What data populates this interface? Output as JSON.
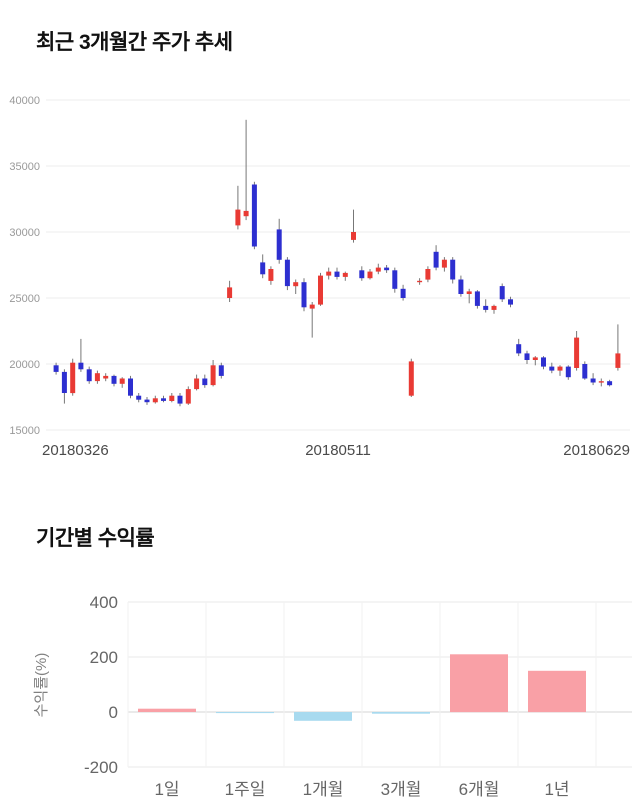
{
  "price_section": {
    "title": "최근 3개월간 주가 추세"
  },
  "returns_section": {
    "title": "기간별 수익률"
  },
  "chart_data": [
    {
      "type": "candlestick",
      "title": "최근 3개월간 주가 추세",
      "ylim": [
        15000,
        40000
      ],
      "yticks": [
        15000,
        20000,
        25000,
        30000,
        35000,
        40000
      ],
      "xtick_labels": [
        "20180326",
        "20180511",
        "20180629"
      ],
      "up_color": "#e93a34",
      "down_color": "#2d2fd0",
      "wick_color": "#777777",
      "grid_color": "#ececec",
      "candles": [
        [
          19900,
          20100,
          19200,
          19400
        ],
        [
          19400,
          19600,
          17000,
          17800
        ],
        [
          17800,
          20400,
          17600,
          20100
        ],
        [
          20100,
          21900,
          19400,
          19600
        ],
        [
          19600,
          19800,
          18500,
          18700
        ],
        [
          18700,
          19500,
          18500,
          19300
        ],
        [
          18900,
          19300,
          18700,
          19100
        ],
        [
          19100,
          19200,
          18300,
          18500
        ],
        [
          18500,
          19000,
          18200,
          18900
        ],
        [
          18900,
          19100,
          17400,
          17600
        ],
        [
          17600,
          17800,
          17100,
          17300
        ],
        [
          17300,
          17500,
          16900,
          17100
        ],
        [
          17100,
          17600,
          17000,
          17400
        ],
        [
          17400,
          17600,
          17100,
          17200
        ],
        [
          17200,
          17800,
          17100,
          17600
        ],
        [
          17600,
          17800,
          16800,
          17000
        ],
        [
          17000,
          18300,
          16900,
          18100
        ],
        [
          18100,
          19200,
          18000,
          18900
        ],
        [
          18900,
          19200,
          18200,
          18400
        ],
        [
          18400,
          20300,
          18300,
          19900
        ],
        [
          19900,
          20100,
          18900,
          19100
        ],
        [
          25000,
          26300,
          24700,
          25800
        ],
        [
          30500,
          33500,
          30200,
          31700
        ],
        [
          31200,
          38500,
          30900,
          31600
        ],
        [
          33600,
          33800,
          28700,
          28900
        ],
        [
          27700,
          28300,
          26500,
          26800
        ],
        [
          26300,
          27400,
          26000,
          27200
        ],
        [
          30200,
          31000,
          27600,
          27900
        ],
        [
          27900,
          28100,
          25600,
          25900
        ],
        [
          25900,
          26400,
          25300,
          26200
        ],
        [
          26200,
          26500,
          24000,
          24300
        ],
        [
          24200,
          24700,
          22000,
          24500
        ],
        [
          24500,
          26900,
          24400,
          26700
        ],
        [
          26700,
          27300,
          26400,
          27000
        ],
        [
          27000,
          27300,
          26400,
          26600
        ],
        [
          26600,
          27000,
          26300,
          26900
        ],
        [
          29400,
          31700,
          29200,
          30000
        ],
        [
          27100,
          27400,
          26300,
          26500
        ],
        [
          26500,
          27200,
          26400,
          27000
        ],
        [
          27000,
          27600,
          26800,
          27300
        ],
        [
          27300,
          27500,
          26900,
          27100
        ],
        [
          27100,
          27300,
          25400,
          25700
        ],
        [
          25700,
          26000,
          24800,
          25000
        ],
        [
          17600,
          20400,
          17500,
          20200
        ],
        [
          26200,
          26500,
          26000,
          26300
        ],
        [
          26400,
          27400,
          26200,
          27200
        ],
        [
          28500,
          29000,
          27100,
          27300
        ],
        [
          27300,
          28100,
          27000,
          27900
        ],
        [
          27900,
          28100,
          26100,
          26400
        ],
        [
          26400,
          26700,
          25100,
          25300
        ],
        [
          25300,
          25700,
          24600,
          25500
        ],
        [
          25500,
          25600,
          24200,
          24400
        ],
        [
          24400,
          24900,
          23900,
          24100
        ],
        [
          24100,
          24500,
          23800,
          24400
        ],
        [
          25900,
          26100,
          24700,
          24900
        ],
        [
          24900,
          25100,
          24300,
          24500
        ],
        [
          21500,
          21900,
          20600,
          20800
        ],
        [
          20800,
          21000,
          20000,
          20300
        ],
        [
          20300,
          20600,
          19900,
          20500
        ],
        [
          20500,
          20600,
          19600,
          19800
        ],
        [
          19800,
          20100,
          19300,
          19500
        ],
        [
          19500,
          19900,
          19100,
          19800
        ],
        [
          19800,
          19900,
          18800,
          19000
        ],
        [
          19700,
          22500,
          19500,
          22000
        ],
        [
          20000,
          20200,
          18800,
          18900
        ],
        [
          18900,
          19300,
          18400,
          18600
        ],
        [
          18600,
          18900,
          18300,
          18700
        ],
        [
          18700,
          18800,
          18300,
          18400
        ],
        [
          19700,
          23000,
          19500,
          20800
        ]
      ]
    },
    {
      "type": "bar",
      "title": "기간별 수익률",
      "ylabel": "수익률(%)",
      "categories": [
        "1일",
        "1주일",
        "1개월",
        "3개월",
        "6개월",
        "1년"
      ],
      "values": [
        12,
        -4,
        -32,
        -6,
        210,
        150
      ],
      "yticks": [
        400,
        200,
        0,
        -200
      ],
      "ylim": [
        -280,
        430
      ],
      "positive_color": "#f9a0a6",
      "negative_color": "#a8daef",
      "grid_color": "#e8e8e8",
      "zero_line_color": "#d6d6d6"
    }
  ]
}
